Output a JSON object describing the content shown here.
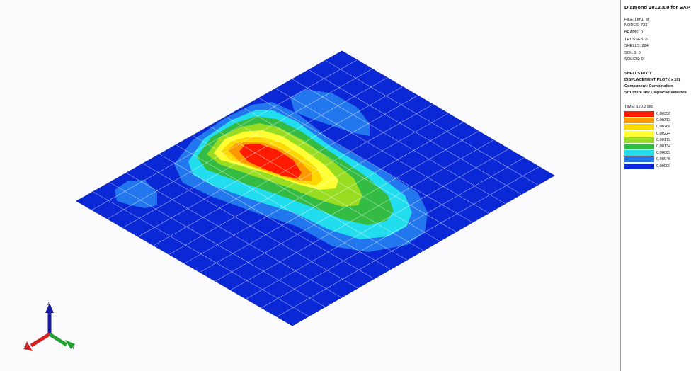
{
  "app": {
    "title": "Diamond 2012.a.0 for SAP"
  },
  "model_info": [
    "FILE: Lim1_st",
    "NODES: 733",
    "BEAMS: 0",
    "TRUSSES: 0",
    "SHELLS: 224",
    "SOILS: 0",
    "SOLIDS: 0"
  ],
  "plot_info": [
    "SHELLS PLOT",
    "DISPLACEMENT PLOT ( x 10)",
    "Component: Combination",
    "Structure Not Displaced selected"
  ],
  "time_label": "TIME: 120.2 sec",
  "legend": [
    {
      "value": "0,00358",
      "color": "#ff1a00"
    },
    {
      "value": "0,00313",
      "color": "#ff9900"
    },
    {
      "value": "0,00268",
      "color": "#ffd700"
    },
    {
      "value": "0,00224",
      "color": "#ffff33"
    },
    {
      "value": "0,00179",
      "color": "#99dd22"
    },
    {
      "value": "0,00134",
      "color": "#33bb44"
    },
    {
      "value": "0,00089",
      "color": "#22ddee"
    },
    {
      "value": "0,00045",
      "color": "#2277ee"
    },
    {
      "value": "0,00000",
      "color": "#0a28d6"
    }
  ],
  "axes": {
    "x": "X",
    "y": "Y",
    "z": "Z"
  }
}
